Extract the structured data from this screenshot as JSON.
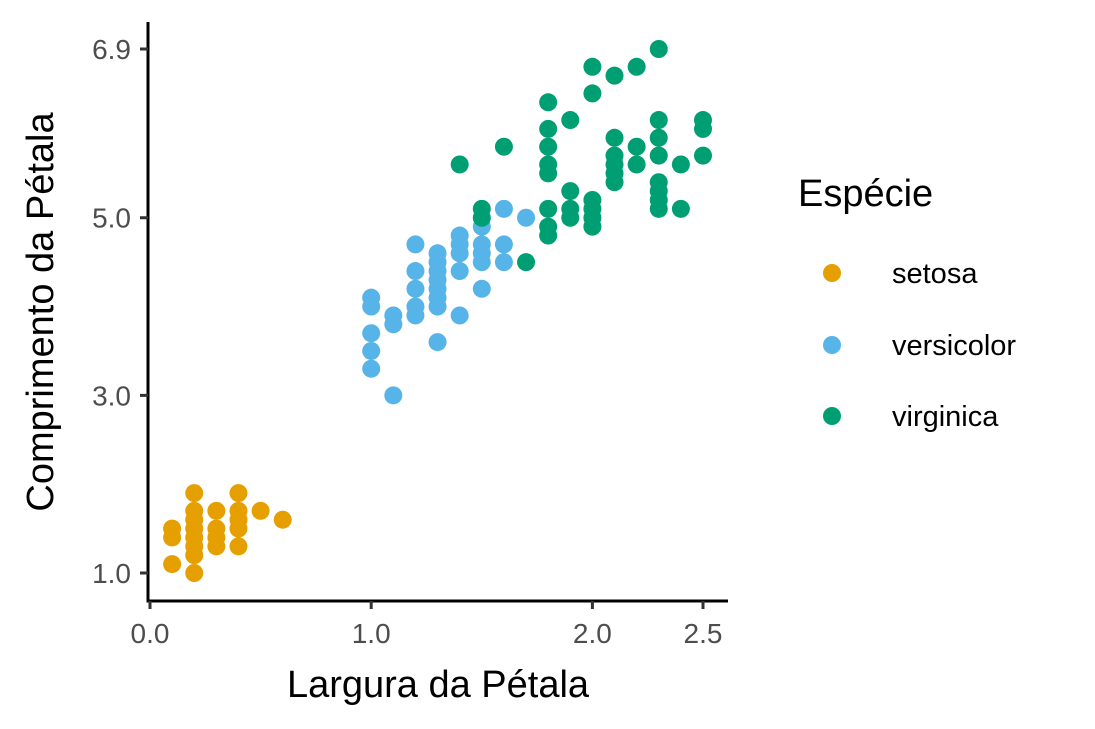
{
  "chart_data": {
    "type": "scatter",
    "title": "",
    "xlabel": "Largura da Pétala",
    "ylabel": "Comprimento da Pétala",
    "xlim": [
      0.0,
      2.5
    ],
    "ylim": [
      1.0,
      6.9
    ],
    "x_ticks": [
      0.0,
      1.0,
      2.0,
      2.5
    ],
    "x_tick_labels": [
      "0.0",
      "1.0",
      "2.0",
      "2.5"
    ],
    "y_ticks": [
      1.0,
      3.0,
      5.0,
      6.9
    ],
    "y_tick_labels": [
      "1.0",
      "3.0",
      "5.0",
      "6.9"
    ],
    "grid": false,
    "legend": {
      "title": "Espécie",
      "placement": "right",
      "entries": [
        "setosa",
        "versicolor",
        "virginica"
      ]
    },
    "series": [
      {
        "name": "setosa",
        "color": "#E69F00",
        "points": [
          [
            0.1,
            1.1
          ],
          [
            0.1,
            1.4
          ],
          [
            0.1,
            1.5
          ],
          [
            0.2,
            1.0
          ],
          [
            0.2,
            1.2
          ],
          [
            0.2,
            1.3
          ],
          [
            0.2,
            1.4
          ],
          [
            0.2,
            1.5
          ],
          [
            0.2,
            1.6
          ],
          [
            0.2,
            1.7
          ],
          [
            0.2,
            1.9
          ],
          [
            0.3,
            1.3
          ],
          [
            0.3,
            1.4
          ],
          [
            0.3,
            1.5
          ],
          [
            0.3,
            1.7
          ],
          [
            0.4,
            1.3
          ],
          [
            0.4,
            1.5
          ],
          [
            0.4,
            1.6
          ],
          [
            0.4,
            1.7
          ],
          [
            0.4,
            1.9
          ],
          [
            0.5,
            1.7
          ],
          [
            0.6,
            1.6
          ]
        ]
      },
      {
        "name": "versicolor",
        "color": "#56B4E9",
        "points": [
          [
            1.0,
            3.3
          ],
          [
            1.0,
            3.5
          ],
          [
            1.0,
            3.7
          ],
          [
            1.0,
            4.0
          ],
          [
            1.0,
            4.1
          ],
          [
            1.1,
            3.0
          ],
          [
            1.1,
            3.8
          ],
          [
            1.1,
            3.9
          ],
          [
            1.2,
            3.9
          ],
          [
            1.2,
            4.0
          ],
          [
            1.2,
            4.2
          ],
          [
            1.2,
            4.4
          ],
          [
            1.2,
            4.7
          ],
          [
            1.3,
            3.6
          ],
          [
            1.3,
            4.0
          ],
          [
            1.3,
            4.1
          ],
          [
            1.3,
            4.2
          ],
          [
            1.3,
            4.3
          ],
          [
            1.3,
            4.4
          ],
          [
            1.3,
            4.5
          ],
          [
            1.3,
            4.6
          ],
          [
            1.4,
            3.9
          ],
          [
            1.4,
            4.4
          ],
          [
            1.4,
            4.6
          ],
          [
            1.4,
            4.7
          ],
          [
            1.4,
            4.8
          ],
          [
            1.5,
            4.2
          ],
          [
            1.5,
            4.5
          ],
          [
            1.5,
            4.6
          ],
          [
            1.5,
            4.7
          ],
          [
            1.5,
            4.9
          ],
          [
            1.6,
            4.5
          ],
          [
            1.6,
            4.7
          ],
          [
            1.6,
            5.1
          ],
          [
            1.7,
            5.0
          ]
        ]
      },
      {
        "name": "virginica",
        "color": "#009E73",
        "points": [
          [
            1.4,
            5.6
          ],
          [
            1.5,
            5.0
          ],
          [
            1.5,
            5.1
          ],
          [
            1.6,
            5.8
          ],
          [
            1.7,
            4.5
          ],
          [
            1.8,
            4.8
          ],
          [
            1.8,
            4.9
          ],
          [
            1.8,
            5.1
          ],
          [
            1.8,
            5.5
          ],
          [
            1.8,
            5.6
          ],
          [
            1.8,
            5.8
          ],
          [
            1.8,
            6.0
          ],
          [
            1.8,
            6.3
          ],
          [
            1.9,
            5.0
          ],
          [
            1.9,
            5.1
          ],
          [
            1.9,
            5.3
          ],
          [
            1.9,
            6.1
          ],
          [
            2.0,
            4.9
          ],
          [
            2.0,
            5.0
          ],
          [
            2.0,
            5.1
          ],
          [
            2.0,
            5.2
          ],
          [
            2.0,
            6.4
          ],
          [
            2.0,
            6.7
          ],
          [
            2.1,
            5.4
          ],
          [
            2.1,
            5.5
          ],
          [
            2.1,
            5.6
          ],
          [
            2.1,
            5.7
          ],
          [
            2.1,
            5.9
          ],
          [
            2.1,
            6.6
          ],
          [
            2.2,
            5.6
          ],
          [
            2.2,
            5.8
          ],
          [
            2.2,
            6.7
          ],
          [
            2.3,
            5.1
          ],
          [
            2.3,
            5.2
          ],
          [
            2.3,
            5.3
          ],
          [
            2.3,
            5.4
          ],
          [
            2.3,
            5.7
          ],
          [
            2.3,
            5.9
          ],
          [
            2.3,
            6.1
          ],
          [
            2.3,
            6.9
          ],
          [
            2.4,
            5.1
          ],
          [
            2.4,
            5.6
          ],
          [
            2.5,
            5.7
          ],
          [
            2.5,
            6.0
          ],
          [
            2.5,
            6.1
          ]
        ]
      }
    ]
  }
}
